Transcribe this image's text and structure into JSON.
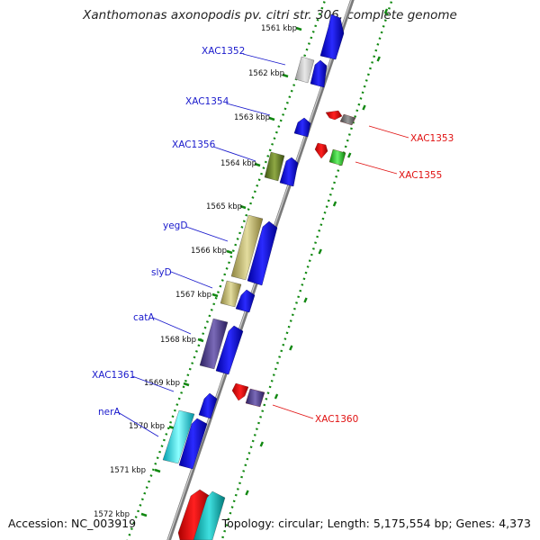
{
  "title": "Xanthomonas axonopodis pv. citri str. 306, complete genome",
  "accession": "Accession: NC_003919",
  "topology": "Topology: circular; Length: 5,175,554 bp; Genes: 4,373",
  "colors": {
    "forward_gene": "#1010ee",
    "reverse_gene": "#ee1010",
    "backbone": "#888888",
    "tick": "#118811"
  },
  "kbp_ticks": [
    "1561 kbp",
    "1562 kbp",
    "1563 kbp",
    "1564 kbp",
    "1565 kbp",
    "1566 kbp",
    "1567 kbp",
    "1568 kbp",
    "1569 kbp",
    "1570 kbp",
    "1571 kbp",
    "1572 kbp"
  ],
  "forward_labels": [
    "XAC1352",
    "XAC1354",
    "XAC1356",
    "yegD",
    "slyD",
    "catA",
    "XAC1361",
    "nerA"
  ],
  "reverse_labels": [
    "XAC1353",
    "XAC1355",
    "XAC1360"
  ]
}
